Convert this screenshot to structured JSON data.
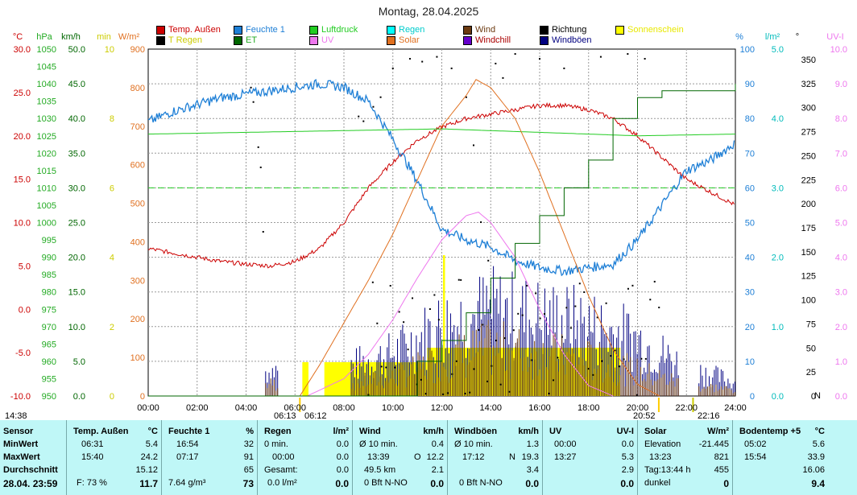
{
  "title": "Montag, 28.04.2025",
  "legend": [
    {
      "label": "Temp. Außen",
      "color": "#cc0000"
    },
    {
      "label": "Feuchte 1",
      "color": "#1e7fd6"
    },
    {
      "label": "Luftdruck",
      "color": "#22cc22"
    },
    {
      "label": "Regen",
      "color": "#00cccc"
    },
    {
      "label": "Wind",
      "color": "#6b3a10"
    },
    {
      "label": "Richtung",
      "color": "#000000"
    },
    {
      "label": "Sonnenschein",
      "color": "#ffff00"
    },
    {
      "label": "T Regen",
      "color": "#000000"
    },
    {
      "label": "ET",
      "color": "#006600"
    },
    {
      "label": "UV",
      "color": "#ee77ee"
    },
    {
      "label": "Solar",
      "color": "#e07020"
    },
    {
      "label": "Windchill",
      "color": "#6600cc"
    },
    {
      "label": "Windböen",
      "color": "#000080"
    }
  ],
  "axis_units": {
    "temp": "°C",
    "hpa": "hPa",
    "kmh": "km/h",
    "min": "min",
    "wm2": "W/m²",
    "pct": "%",
    "lm2": "l/m²",
    "deg": "°",
    "uvi": "UV-I"
  },
  "footer_left": {
    "time": "14:38",
    "sunrise": "06:13",
    "sunrise2": "06:12",
    "sunset": "20:52",
    "moonset": "22:16"
  },
  "chart_data": {
    "type": "line",
    "title": "Montag, 28.04.2025",
    "x_ticks": [
      "00:00",
      "02:00",
      "04:00",
      "06:00",
      "08:00",
      "10:00",
      "12:00",
      "14:00",
      "16:00",
      "18:00",
      "20:00",
      "22:00",
      "24:00"
    ],
    "axes": {
      "temp": {
        "ticks": [
          "30.0",
          "25.0",
          "20.0",
          "15.0",
          "10.0",
          "5.0",
          "0.0",
          "-5.0",
          "-10.0"
        ],
        "color": "#cc0000"
      },
      "hpa": {
        "ticks": [
          "1050",
          "1045",
          "1040",
          "1035",
          "1030",
          "1025",
          "1020",
          "1015",
          "1010",
          "1005",
          "1000",
          "995",
          "990",
          "985",
          "980",
          "975",
          "970",
          "965",
          "960",
          "955",
          "950"
        ],
        "color": "#22aa22"
      },
      "kmh": {
        "ticks": [
          "50.0",
          "45.0",
          "40.0",
          "35.0",
          "30.0",
          "25.0",
          "20.0",
          "15.0",
          "10.0",
          "5.0",
          "0.0"
        ],
        "color": "#006600"
      },
      "min": {
        "ticks": [
          "10",
          "8",
          "6",
          "4",
          "2",
          "0"
        ],
        "color": "#cccc00"
      },
      "wm2": {
        "ticks": [
          "900",
          "800",
          "700",
          "600",
          "500",
          "400",
          "300",
          "200",
          "100",
          "0"
        ],
        "color": "#e07020"
      },
      "pct": {
        "ticks": [
          "100",
          "90",
          "80",
          "70",
          "60",
          "50",
          "40",
          "30",
          "20",
          "10",
          "0"
        ],
        "color": "#1e7fd6"
      },
      "lm2": {
        "ticks": [
          "5.0",
          "4.0",
          "3.0",
          "2.0",
          "1.0",
          "0.0"
        ],
        "color": "#00bbbb"
      },
      "deg": {
        "ticks": [
          "350",
          "325",
          "300",
          "275",
          "250",
          "225",
          "200",
          "175",
          "150",
          "125",
          "100",
          "75",
          "50",
          "25",
          "0",
          "N"
        ],
        "color": "#000000"
      },
      "uvi": {
        "ticks": [
          "10.0",
          "9.0",
          "8.0",
          "7.0",
          "6.0",
          "5.0",
          "4.0",
          "3.0",
          "2.0",
          "1.0",
          "0.0"
        ],
        "color": "#ee77ee"
      }
    },
    "ranges": {
      "temp": [
        -10,
        30
      ],
      "pressure": [
        950,
        1050
      ],
      "humidity": [
        0,
        100
      ],
      "solar": [
        0,
        900
      ],
      "uv": [
        0,
        10
      ],
      "et": [
        0,
        5
      ]
    },
    "series": [
      {
        "name": "Temp. Außen",
        "axis": "temp",
        "hours": [
          0,
          1,
          2,
          3,
          4,
          5,
          6,
          7,
          8,
          9,
          10,
          11,
          12,
          13,
          14,
          15,
          16,
          17,
          18,
          19,
          20,
          21,
          22,
          23,
          24
        ],
        "values": [
          7.0,
          6.5,
          6.0,
          5.5,
          5.2,
          5.0,
          5.5,
          7.0,
          10.0,
          14.0,
          17.0,
          19.5,
          21.0,
          22.0,
          22.5,
          23.0,
          23.5,
          23.5,
          23.0,
          22.0,
          20.0,
          17.5,
          15.0,
          13.5,
          12.0
        ]
      },
      {
        "name": "Feuchte 1",
        "axis": "pct",
        "hours": [
          0,
          1,
          2,
          3,
          4,
          5,
          6,
          7,
          8,
          9,
          10,
          11,
          12,
          13,
          14,
          15,
          16,
          17,
          18,
          19,
          20,
          21,
          22,
          23,
          24
        ],
        "values": [
          79,
          82,
          84,
          86,
          87,
          88,
          89,
          90,
          89,
          85,
          74,
          62,
          48,
          45,
          43,
          39,
          37,
          36,
          37,
          38,
          45,
          55,
          65,
          68,
          73
        ]
      },
      {
        "name": "Luftdruck",
        "axis": "hpa",
        "hours": [
          0,
          4,
          8,
          12,
          16,
          20,
          24
        ],
        "values": [
          1025.5,
          1026.0,
          1026.5,
          1027.0,
          1026.0,
          1025.0,
          1025.5
        ]
      },
      {
        "name": "Solar",
        "axis": "wm2",
        "hours": [
          6.2,
          7,
          8,
          9,
          10,
          11,
          12,
          13,
          13.4,
          14,
          15,
          16,
          17,
          18,
          19,
          20,
          20.9
        ],
        "values": [
          0,
          80,
          190,
          300,
          420,
          560,
          700,
          780,
          821,
          800,
          720,
          580,
          420,
          260,
          120,
          30,
          0
        ]
      },
      {
        "name": "UV",
        "axis": "uvi",
        "hours": [
          6.5,
          8,
          9,
          10,
          11,
          12,
          13,
          13.5,
          14,
          15,
          16,
          17,
          18,
          19
        ],
        "values": [
          0,
          0.5,
          1.2,
          2.2,
          3.4,
          4.5,
          5.2,
          5.3,
          5.0,
          4.0,
          2.5,
          1.2,
          0.3,
          0
        ]
      },
      {
        "name": "ET",
        "axis": "lm2",
        "hours": [
          0,
          6,
          11,
          12,
          13,
          14,
          15,
          16,
          17,
          18,
          19,
          20,
          21,
          24
        ],
        "values": [
          0,
          0,
          0.5,
          0.8,
          1.2,
          1.7,
          2.2,
          2.6,
          3.0,
          3.4,
          4.0,
          4.3,
          4.4,
          4.5
        ]
      },
      {
        "name": "Wind",
        "axis": "kmh",
        "hours": [
          0,
          8,
          10,
          12,
          14,
          16,
          18,
          20,
          22,
          24
        ],
        "values": [
          2,
          2,
          3,
          6,
          8,
          7,
          6,
          4,
          2,
          1
        ]
      },
      {
        "name": "Windböen",
        "axis": "kmh",
        "hours": [
          0,
          8,
          10,
          12,
          14,
          16,
          18,
          20,
          22,
          24
        ],
        "values": [
          3,
          4,
          6,
          10,
          12,
          11,
          10,
          8,
          4,
          2
        ]
      }
    ]
  },
  "panel": {
    "sensor": {
      "title": "Sensor",
      "rows": [
        "MinWert",
        "MaxWert",
        "Durchschnitt"
      ],
      "date": "28.04. 23:59"
    },
    "temp": {
      "title": "Temp. Außen",
      "unit": "°C",
      "min_time": "06:31",
      "min": "5.4",
      "max_time": "15:40",
      "max": "24.2",
      "avg": "15.12",
      "foot_label": "F: 73 %",
      "current": "11.7"
    },
    "hum": {
      "title": "Feuchte 1",
      "unit": "%",
      "min_time": "16:54",
      "min": "32",
      "max_time": "07:17",
      "max": "91",
      "avg": "65",
      "foot_label": "7.64 g/m³",
      "current": "73"
    },
    "rain": {
      "title": "Regen",
      "unit": "l/m²",
      "r1_label": "0 min.",
      "r1": "0.0",
      "r2_label": "00:00",
      "r2": "0.0",
      "r3_label": "Gesamt:",
      "r3": "0.0",
      "foot_label": "0.0 l/m²",
      "current": "0.0"
    },
    "wind": {
      "title": "Wind",
      "unit": "km/h",
      "r1_label": "Ø 10 min.",
      "r1": "0.4",
      "r2_label": "13:39",
      "r2_dir": "O",
      "r2": "12.2",
      "r3_label": "49.5 km",
      "r3": "2.1",
      "foot_label": "0 Bft N-NO",
      "current": "0.0"
    },
    "gust": {
      "title": "Windböen",
      "unit": "km/h",
      "r1_label": "Ø 10 min.",
      "r1": "1.3",
      "r2_label": "17:12",
      "r2_dir": "N",
      "r2": "19.3",
      "r3": "3.4",
      "foot_label": "0 Bft N-NO",
      "current": "0.0"
    },
    "uv": {
      "title": "UV",
      "unit": "UV-I",
      "r1_label": "00:00",
      "r1": "0.0",
      "r2_label": "13:27",
      "r2": "5.3",
      "r3": "2.9",
      "current": "0.0"
    },
    "solar": {
      "title": "Solar",
      "unit": "W/m²",
      "r1_label": "Elevation",
      "r1": "-21.445",
      "r2_label": "13:23",
      "r2": "821",
      "r3_label": "Tag:13:44 h",
      "r3": "455",
      "foot_label": "dunkel",
      "current": "0"
    },
    "soil": {
      "title": "Bodentemp +5",
      "unit": "°C",
      "min_time": "05:02",
      "min": "5.6",
      "max_time": "15:54",
      "max": "33.9",
      "avg": "16.06",
      "current": "9.4"
    }
  }
}
